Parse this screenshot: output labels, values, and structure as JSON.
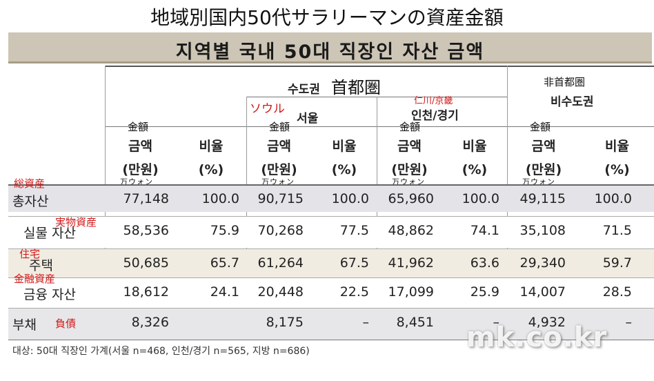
{
  "jp_title": "地域別国内50代サラリーマンの資産金額",
  "kr_title": "지역별 국내 50대 직장인 자산 금액",
  "groups": {
    "capital_kr": "수도권",
    "capital_jp": "首都圏",
    "seoul_kr": "서울",
    "seoul_jp": "ソウル",
    "incheon_kr": "인천/경기",
    "incheon_jp": "仁川/京畿",
    "noncapital_kr": "비수도권",
    "noncapital_jp": "非首都圏"
  },
  "column_headers": {
    "amount": "금액\n(만원)",
    "ratio": "비율\n(%)",
    "amount_jp": "金額",
    "unit_jp": "万ウォン"
  },
  "rows": [
    {
      "label_kr": "총자산",
      "label_jp": "総資産",
      "cells": [
        "77,148",
        "100.0",
        "90,715",
        "100.0",
        "65,960",
        "100.0",
        "49,115",
        "100.0"
      ]
    },
    {
      "label_kr": "실물 자산",
      "label_jp": "実物資産",
      "cells": [
        "58,536",
        "75.9",
        "70,268",
        "77.5",
        "48,862",
        "74.1",
        "35,108",
        "71.5"
      ]
    },
    {
      "label_kr": "주택",
      "label_jp": "住宅",
      "cells": [
        "50,685",
        "65.7",
        "61,264",
        "67.5",
        "41,962",
        "63.6",
        "29,340",
        "59.7"
      ]
    },
    {
      "label_kr": "금융 자산",
      "label_jp": "金融資産",
      "cells": [
        "18,612",
        "24.1",
        "20,448",
        "22.5",
        "17,099",
        "25.9",
        "14,007",
        "28.5"
      ]
    },
    {
      "label_kr": "부채",
      "label_jp": "負債",
      "cells": [
        "8,326",
        "",
        "8,175",
        "–",
        "8,451",
        "–",
        "4,932",
        "–"
      ]
    }
  ],
  "footnote": "대상: 50대 직장인 가계(서울 n=468, 인천/경기 n=565, 지방 n=686)",
  "watermark": "mk.co.kr"
}
